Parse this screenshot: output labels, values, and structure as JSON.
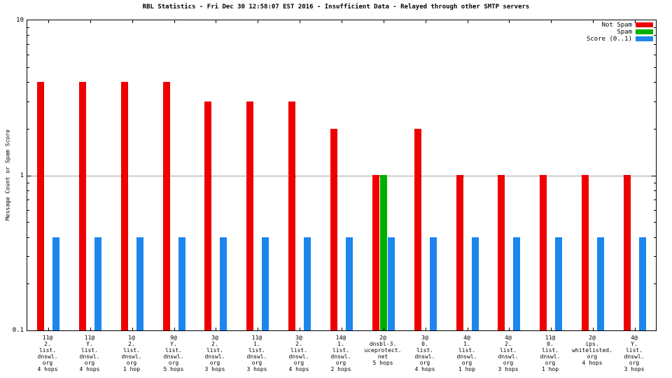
{
  "title": "RBL Statistics - Fri Dec 30 12:58:07 EST 2016 - Insufficient Data - Relayed through other SMTP servers",
  "chart_data": {
    "type": "bar",
    "title": "RBL Statistics - Fri Dec 30 12:58:07 EST 2016 - Insufficient Data - Relayed through other SMTP servers",
    "ylabel": "Message Count or Spam Score",
    "xlabel": "",
    "yscale": "log",
    "ylim": [
      0.1,
      10
    ],
    "yticks": [
      10,
      1,
      0.1
    ],
    "ytick_labels": [
      "10",
      "1",
      "0.1"
    ],
    "grid_values": [
      1
    ],
    "grid": "horizontal-dotted-at-1",
    "legend_position": "top-right-inside",
    "categories": [
      [
        "11@",
        "2.",
        "list.",
        "dnswl.",
        "org",
        "4 hops"
      ],
      [
        "11@",
        "Y.",
        "list.",
        "dnswl.",
        "org",
        "4 hops"
      ],
      [
        "1@",
        "2.",
        "list.",
        "dnswl.",
        "org",
        "1 hop"
      ],
      [
        "9@",
        "Y.",
        "list.",
        "dnswl.",
        "org",
        "5 hops"
      ],
      [
        "3@",
        "2.",
        "list.",
        "dnswl.",
        "org",
        "3 hops"
      ],
      [
        "11@",
        "1.",
        "list.",
        "dnswl.",
        "org",
        "3 hops"
      ],
      [
        "3@",
        "2.",
        "list.",
        "dnswl.",
        "org",
        "4 hops"
      ],
      [
        "14@",
        "1.",
        "list.",
        "dnswl.",
        "org",
        "2 hops"
      ],
      [
        "2@",
        "dnsbl-3.",
        "uceprotect.",
        "net",
        "5 hops"
      ],
      [
        "3@",
        "0.",
        "list.",
        "dnswl.",
        "org",
        "4 hops"
      ],
      [
        "4@",
        "1.",
        "list.",
        "dnswl.",
        "org",
        "1 hop"
      ],
      [
        "4@",
        "2.",
        "list.",
        "dnswl.",
        "org",
        "3 hops"
      ],
      [
        "11@",
        "0.",
        "list.",
        "dnswl.",
        "org",
        "1 hop"
      ],
      [
        "2@",
        "ips.",
        "whitelisted.",
        "org",
        "4 hops"
      ],
      [
        "4@",
        "Y.",
        "list.",
        "dnswl.",
        "org",
        "3 hops"
      ]
    ],
    "series": [
      {
        "name": "Not Spam",
        "color": "#ee0000",
        "values": [
          4,
          4,
          4,
          4,
          3,
          3,
          3,
          2,
          1,
          2,
          1,
          1,
          1,
          1,
          1
        ]
      },
      {
        "name": "Spam",
        "color": "#00b000",
        "values": [
          0,
          0,
          0,
          0,
          0,
          0,
          0,
          0,
          1,
          0,
          0,
          0,
          0,
          0,
          0
        ]
      },
      {
        "name": "Score (0..1)",
        "color": "#1c86ee",
        "values": [
          0.4,
          0.4,
          0.4,
          0.4,
          0.4,
          0.4,
          0.4,
          0.4,
          0.4,
          0.4,
          0.4,
          0.4,
          0.4,
          0.4,
          0.4
        ]
      }
    ]
  }
}
